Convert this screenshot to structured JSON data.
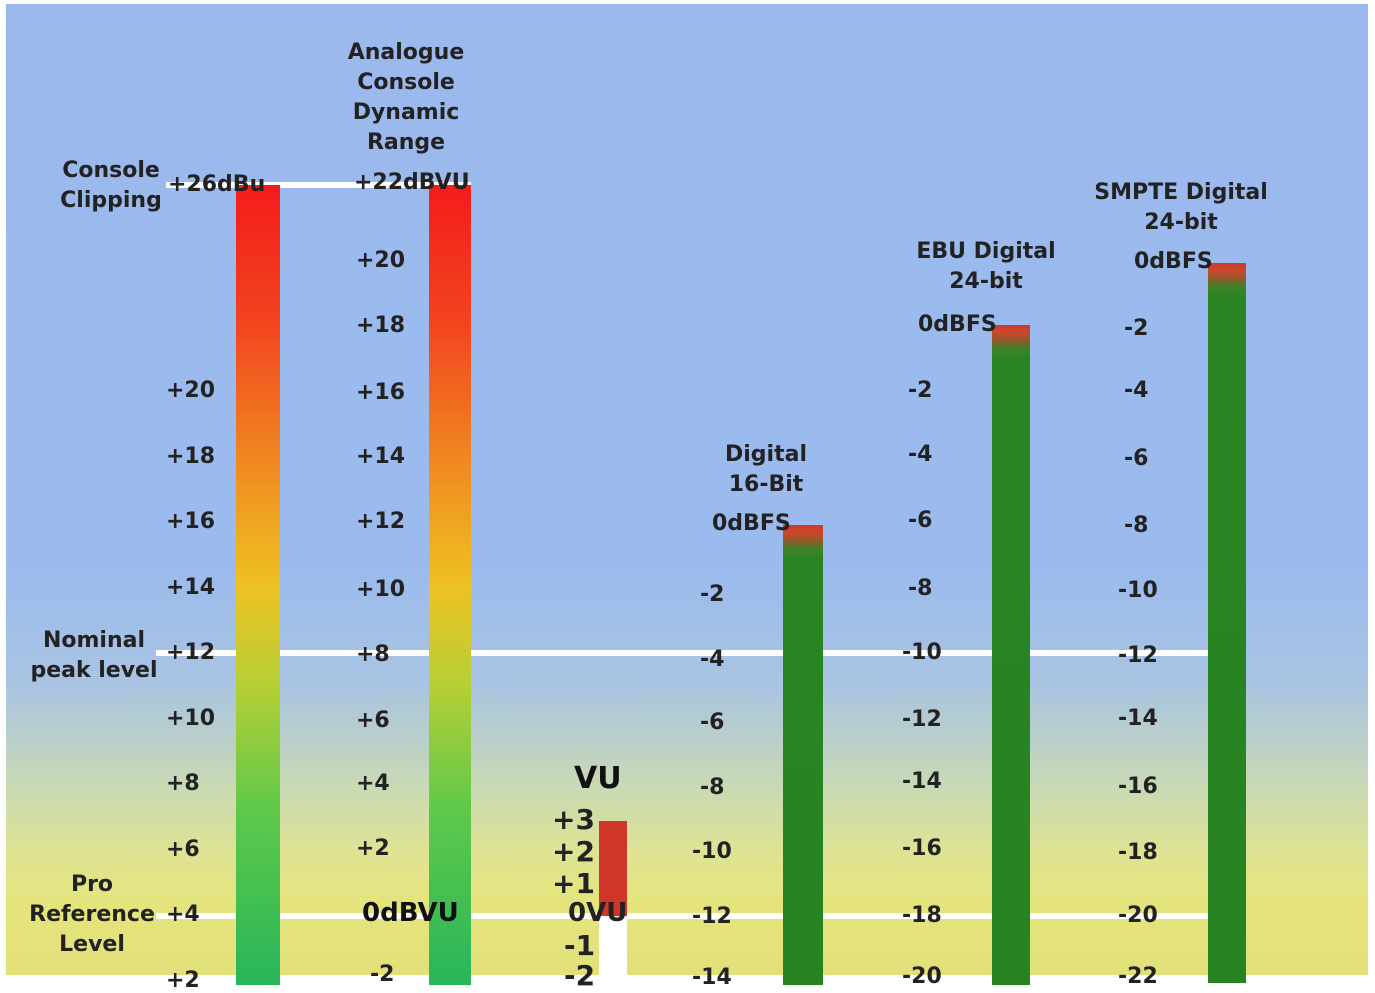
{
  "labels": {
    "console_clipping": [
      "Console",
      "Clipping"
    ],
    "nominal_peak": [
      "Nominal",
      "peak level"
    ],
    "pro_reference": [
      "Pro",
      "Reference",
      "Level"
    ]
  },
  "columns": {
    "console_dbu": {
      "top_label": "+26dBu",
      "ticks": [
        "+20",
        "+18",
        "+16",
        "+14",
        "+12",
        "+10",
        "+8",
        "+6",
        "+4",
        "+2"
      ]
    },
    "analogue_console": {
      "title": [
        "Analogue",
        "Console",
        "Dynamic",
        "Range"
      ],
      "top_label": "+22dBVU",
      "ticks": [
        "+20",
        "+18",
        "+16",
        "+14",
        "+12",
        "+10",
        "+8",
        "+6",
        "+4",
        "+2",
        "0dBVU",
        "-2"
      ]
    },
    "vu": {
      "title": "VU",
      "ticks": [
        "+3",
        "+2",
        "+1",
        "0VU",
        "-1",
        "-2"
      ]
    },
    "digital_16": {
      "title": [
        "Digital",
        "16-Bit"
      ],
      "top_label": "0dBFS",
      "ticks": [
        "-2",
        "-4",
        "-6",
        "-8",
        "-10",
        "-12",
        "-14"
      ]
    },
    "ebu_24": {
      "title": [
        "EBU Digital",
        "24-bit"
      ],
      "top_label": "0dBFS",
      "ticks": [
        "-2",
        "-4",
        "-6",
        "-8",
        "-10",
        "-12",
        "-14",
        "-16",
        "-18",
        "-20"
      ]
    },
    "smpte_24": {
      "title": [
        "SMPTE Digital",
        "24-bit"
      ],
      "top_label": "0dBFS",
      "ticks": [
        "-2",
        "-4",
        "-6",
        "-8",
        "-10",
        "-12",
        "-14",
        "-16",
        "-18",
        "-20",
        "-22"
      ]
    }
  },
  "colors": {
    "background_top": "#9bb9ec",
    "background_bottom": "#e2e07a",
    "analogue_hot": "#f41b1b",
    "analogue_cool": "#28b55a",
    "digital_body": "#278421",
    "digital_peak": "#d23a2a",
    "vu_bar": "#d0352a",
    "reference_line": "#ffffff"
  }
}
